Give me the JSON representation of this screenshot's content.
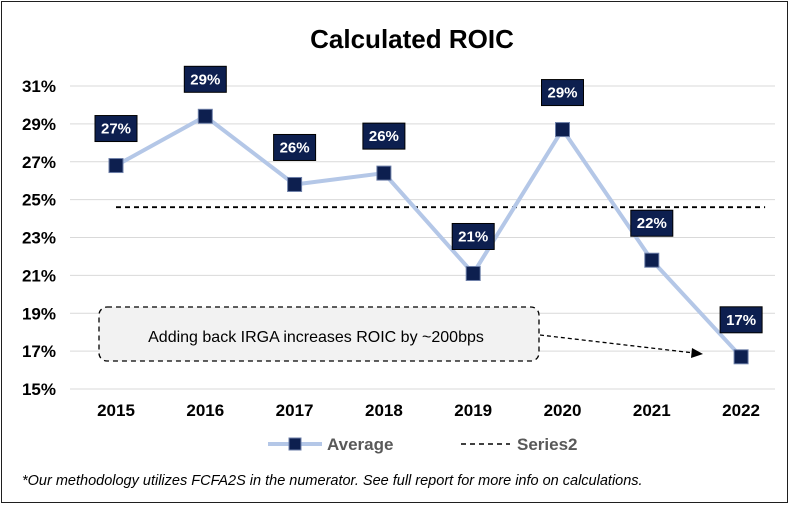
{
  "chart_data": {
    "type": "line",
    "title": "Calculated ROIC",
    "categories": [
      "2015",
      "2016",
      "2017",
      "2018",
      "2019",
      "2020",
      "2021",
      "2022"
    ],
    "y_unit": "%",
    "ylim": [
      15,
      31
    ],
    "yticks": [
      "15%",
      "17%",
      "19%",
      "21%",
      "23%",
      "25%",
      "27%",
      "29%",
      "31%"
    ],
    "grid": true,
    "legend_position": "bottom",
    "series": [
      {
        "name": "Average",
        "values": [
          26.8,
          29.4,
          25.8,
          26.4,
          21.1,
          28.7,
          21.8,
          16.7
        ],
        "labels": [
          "27%",
          "29%",
          "26%",
          "26%",
          "21%",
          "29%",
          "22%",
          "17%"
        ],
        "color": "#b4c7e7",
        "marker_color": "#0d1f4f"
      },
      {
        "name": "Series2",
        "values": [
          24.6,
          24.6,
          24.6,
          24.6,
          24.6,
          24.6,
          24.6,
          24.6
        ],
        "style": "dashed",
        "color": "#000000"
      }
    ],
    "annotation": "Adding back IRGA increases ROIC by ~200bps",
    "footnote": "*Our methodology utilizes FCFA2S in the numerator. See full report for more info on calculations."
  }
}
